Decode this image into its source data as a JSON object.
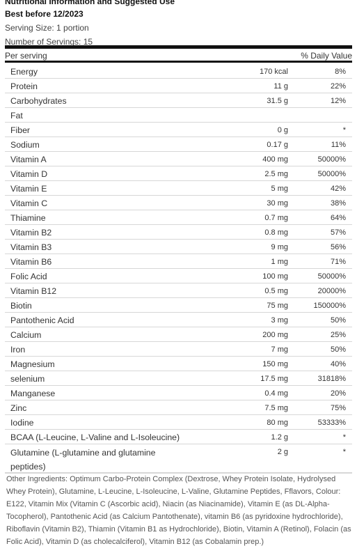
{
  "header": {
    "title": "Nutritional Information and Suggested Use",
    "best_before": "Best before 12/2023",
    "serving_size": "Serving Size: 1 portion",
    "servings": "Number of Servings: 15"
  },
  "columns": {
    "per_serving": "Per serving",
    "daily_value": "% Daily Value"
  },
  "rows": [
    {
      "name": "Energy",
      "amount": "170 kcal",
      "dv": "8%"
    },
    {
      "name": "Protein",
      "amount": "11 g",
      "dv": "22%"
    },
    {
      "name": "Carbohydrates",
      "amount": "31.5 g",
      "dv": "12%"
    },
    {
      "name": "Fat",
      "amount": "",
      "dv": ""
    },
    {
      "name": "Fiber",
      "amount": "0 g",
      "dv": "*"
    },
    {
      "name": "Sodium",
      "amount": "0.17 g",
      "dv": "11%"
    },
    {
      "name": "Vitamin A",
      "amount": "400 mg",
      "dv": "50000%"
    },
    {
      "name": "Vitamin D",
      "amount": "2.5 mg",
      "dv": "50000%"
    },
    {
      "name": "Vitamin E",
      "amount": "5 mg",
      "dv": "42%"
    },
    {
      "name": "Vitamin C",
      "amount": "30 mg",
      "dv": "38%"
    },
    {
      "name": "Thiamine",
      "amount": "0.7 mg",
      "dv": "64%"
    },
    {
      "name": "Vitamin B2",
      "amount": "0.8 mg",
      "dv": "57%"
    },
    {
      "name": "Vitamin B3",
      "amount": "9 mg",
      "dv": "56%"
    },
    {
      "name": "Vitamin B6",
      "amount": "1 mg",
      "dv": "71%"
    },
    {
      "name": "Folic Acid",
      "amount": "100 mg",
      "dv": "50000%"
    },
    {
      "name": "Vitamin B12",
      "amount": "0.5 mg",
      "dv": "20000%"
    },
    {
      "name": "Biotin",
      "amount": "75 mg",
      "dv": "150000%"
    },
    {
      "name": "Pantothenic Acid",
      "amount": "3 mg",
      "dv": "50%"
    },
    {
      "name": "Calcium",
      "amount": "200 mg",
      "dv": "25%"
    },
    {
      "name": "Iron",
      "amount": "7 mg",
      "dv": "50%"
    },
    {
      "name": "Magnesium",
      "amount": "150 mg",
      "dv": "40%"
    },
    {
      "name": "selenium",
      "amount": "17.5 mg",
      "dv": "31818%"
    },
    {
      "name": "Manganese",
      "amount": "0.4 mg",
      "dv": "20%"
    },
    {
      "name": "Zinc",
      "amount": "7.5 mg",
      "dv": "75%"
    },
    {
      "name": "Iodine",
      "amount": "80 mg",
      "dv": "53333%"
    },
    {
      "name": "BCAA (L-Leucine, L-Valine and L-Isoleucine)",
      "amount": "1.2 g",
      "dv": "*"
    },
    {
      "name": "Glutamine (L-glutamine and glutamine peptides)",
      "amount": "2 g",
      "dv": "*",
      "tall": true
    }
  ],
  "other_ingredients": "Other Ingredients: Optimum Carbo-Protein Complex (Dextrose, Whey Protein Isolate, Hydrolysed Whey Protein), Glutamine, L-Leucine, L-Isoleucine, L-Valine, Glutamine Peptides, Fflavors, Colour: E122, Vitamin Mix (Vitamin C (Ascorbic acid), Niacin (as Niacinamide), Vitamin E (as DL-Alpha-Tocopherol), Pantothenic Acid (as Calcium Pantothenate), vitamin B6 (as pyridoxine hydrochloride), Riboflavin (Vitamin B2), Thiamin (Vitamin B1 as Hydrochloride), Biotin, Vitamin A (Retinol), Folacin (as Folic Acid), Vitamin D (as cholecalciferol), Vitamin B12 (as Cobalamin prep.)"
}
